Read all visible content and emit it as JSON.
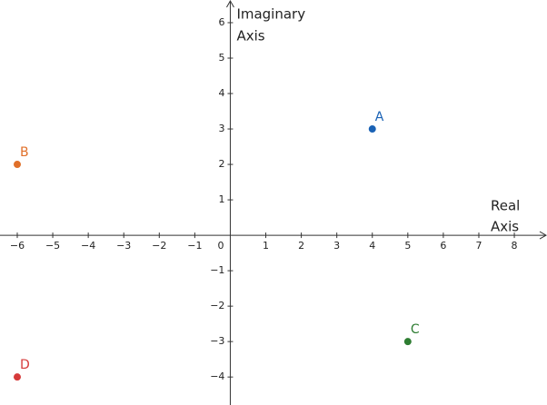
{
  "chart_data": {
    "type": "scatter",
    "x_label": [
      "Real",
      "Axis"
    ],
    "y_label": [
      "Imaginary",
      "Axis"
    ],
    "xlim": [
      -6.486,
      8.92
    ],
    "ylim": [
      -4.79,
      6.64
    ],
    "xticks": [
      {
        "value": -6,
        "label": "−6"
      },
      {
        "value": -5,
        "label": "−5"
      },
      {
        "value": -4,
        "label": "−4"
      },
      {
        "value": -3,
        "label": "−3"
      },
      {
        "value": -2,
        "label": "−2"
      },
      {
        "value": -1,
        "label": "−1"
      },
      0,
      1,
      2,
      3,
      4,
      5,
      6,
      7,
      8
    ],
    "yticks": [
      {
        "value": -4,
        "label": "−4"
      },
      {
        "value": -3,
        "label": "−3"
      },
      {
        "value": -2,
        "label": "−2"
      },
      {
        "value": -1,
        "label": "−1"
      },
      1,
      2,
      3,
      4,
      5,
      6
    ],
    "grid": false,
    "series": [
      {
        "name": "A",
        "color": "#1a62b5",
        "x": [
          4
        ],
        "y": [
          3
        ]
      },
      {
        "name": "B",
        "color": "#e0702a",
        "x": [
          -6
        ],
        "y": [
          2
        ]
      },
      {
        "name": "C",
        "color": "#2e7d32",
        "x": [
          5
        ],
        "y": [
          -3
        ]
      },
      {
        "name": "D",
        "color": "#d63a3a",
        "x": [
          -6
        ],
        "y": [
          -4
        ]
      }
    ]
  }
}
